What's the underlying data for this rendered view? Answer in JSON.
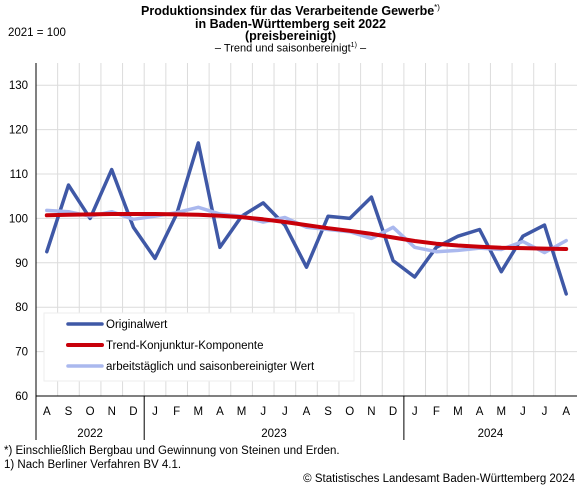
{
  "title_lines": [
    "Produktionsindex für das Verarbeitende Gewerbe",
    "in Baden-Württemberg seit 2022",
    "(preisbereinigt)"
  ],
  "title_footnote_mark": "*)",
  "subtitle": "– Trend und saisonbereinigt",
  "subtitle_footnote_mark": "1)",
  "subtitle_end": " –",
  "index_note": "2021 = 100",
  "footnotes": [
    "*) Einschließlich Bergbau und Gewinnung von Steinen und Erden.",
    "1) Nach Berliner Verfahren BV 4.1."
  ],
  "source": "© Statistisches Landesamt Baden-Württemberg 2024",
  "chart_data": {
    "type": "line",
    "ylim": [
      60,
      135
    ],
    "yticks": [
      60,
      70,
      80,
      90,
      100,
      110,
      120,
      130
    ],
    "grid": true,
    "legend_position": "bottom-left",
    "months": [
      "A",
      "S",
      "O",
      "N",
      "D",
      "J",
      "F",
      "M",
      "A",
      "M",
      "J",
      "J",
      "A",
      "S",
      "O",
      "N",
      "D",
      "J",
      "F",
      "M",
      "A",
      "M",
      "J",
      "J",
      "A"
    ],
    "years": [
      {
        "label": "2022",
        "start": 0,
        "end": 4
      },
      {
        "label": "2023",
        "start": 5,
        "end": 16
      },
      {
        "label": "2024",
        "start": 17,
        "end": 24
      }
    ],
    "series": [
      {
        "name": "Originalwert",
        "color": "#3f58a6",
        "width": 3.5,
        "values": [
          92.5,
          107.5,
          100.0,
          111.0,
          98.0,
          91.0,
          101.0,
          117.0,
          93.5,
          100.5,
          103.5,
          98.5,
          89.0,
          100.5,
          100.0,
          104.8,
          90.5,
          86.8,
          93.5,
          96.0,
          97.5,
          88.0,
          96.0,
          98.5,
          83.0
        ]
      },
      {
        "name": "Trend-Konjunktur-Komponente",
        "color": "#c8000a",
        "width": 4,
        "values": [
          100.7,
          100.8,
          100.9,
          101.0,
          101.0,
          101.0,
          100.9,
          100.8,
          100.6,
          100.3,
          99.8,
          99.2,
          98.5,
          97.8,
          97.2,
          96.5,
          95.7,
          94.9,
          94.3,
          93.9,
          93.6,
          93.4,
          93.3,
          93.2,
          93.1
        ]
      },
      {
        "name": "arbeitstäglich und saisonbereinigter Wert",
        "color": "#aab8ee",
        "width": 3.5,
        "values": [
          101.8,
          101.5,
          100.5,
          101.5,
          99.8,
          100.5,
          101.3,
          102.5,
          101.0,
          100.5,
          99.2,
          100.2,
          98.0,
          97.5,
          97.0,
          95.5,
          98.0,
          93.5,
          92.5,
          92.8,
          93.3,
          93.0,
          94.8,
          92.3,
          95.0
        ]
      }
    ]
  }
}
